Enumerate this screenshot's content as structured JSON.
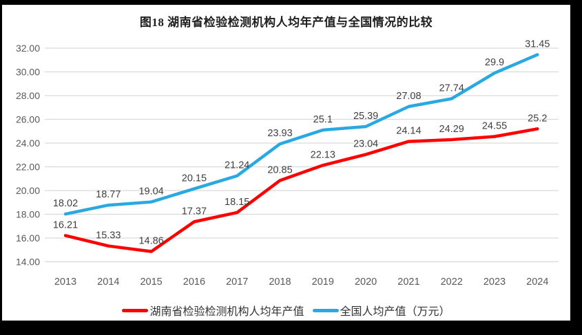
{
  "frame": {
    "border_color": "#000000"
  },
  "chart_data": {
    "type": "line",
    "title": "图18 湖南省检验检测机构人均年产值与全国情况的比较",
    "categories": [
      "2013",
      "2014",
      "2015",
      "2016",
      "2017",
      "2018",
      "2019",
      "2020",
      "2021",
      "2022",
      "2023",
      "2024"
    ],
    "series": [
      {
        "name": "湖南省检验检测机构人均年产值",
        "color": "#ff0000",
        "values": [
          16.21,
          15.33,
          14.86,
          17.37,
          18.15,
          20.85,
          22.13,
          23.04,
          24.14,
          24.29,
          24.55,
          25.2
        ]
      },
      {
        "name": "全国人均产值（万元）",
        "color": "#29a8e1",
        "values": [
          18.02,
          18.77,
          19.04,
          20.15,
          21.24,
          23.93,
          25.1,
          25.39,
          27.08,
          27.74,
          29.9,
          31.45
        ]
      }
    ],
    "xlabel": "",
    "ylabel": "",
    "ylim": [
      14,
      32
    ],
    "ytick_step": 2,
    "ytick_decimals": 2,
    "grid": true,
    "data_labels": true,
    "legend_position": "bottom",
    "colors": {
      "gridline": "#d9d9d9",
      "tick_label": "#595959",
      "data_label": "#404040",
      "title": "#1f1f1f"
    }
  }
}
